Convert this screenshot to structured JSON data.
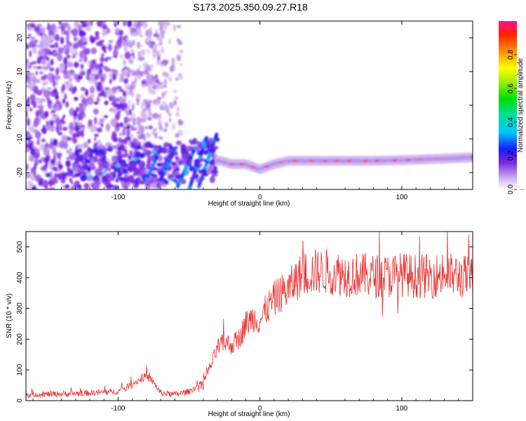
{
  "title": "S173.2025.350.09.27.R18",
  "colorbar": {
    "label": "Normalized spectral amplitude",
    "ticks": [
      "0.0",
      "0.2",
      "0.4",
      "0.6",
      "0.8"
    ],
    "tick_values": [
      0.0,
      0.2,
      0.4,
      0.6,
      0.8
    ],
    "range": [
      0,
      1
    ]
  },
  "chart_data": [
    {
      "type": "heatmap",
      "title": "",
      "xlabel": "Height of straight line (km)",
      "ylabel": "Frequency (Hz)",
      "xlim": [
        -165,
        150
      ],
      "ylim": [
        -25,
        25
      ],
      "xticks": [
        -100,
        0,
        100
      ],
      "xtick_labels": [
        "-100",
        "0",
        "100"
      ],
      "yticks": [
        -20,
        -10,
        0,
        10,
        20
      ],
      "ytick_labels": [
        "-20",
        "-10",
        "0",
        "10",
        "20"
      ],
      "ridge": {
        "description_points_x": [
          -28,
          -20,
          -10,
          0,
          10,
          20,
          40,
          60,
          80,
          100,
          120,
          150
        ],
        "frequency_hz": [
          -16.5,
          -17.5,
          -17.5,
          -19,
          -17.5,
          -16.5,
          -16.5,
          -16.5,
          -16.5,
          -16.3,
          -16,
          -15.5
        ],
        "amplitude": [
          0.6,
          0.7,
          0.65,
          0.5,
          0.7,
          0.8,
          0.9,
          0.9,
          0.85,
          0.75,
          0.7,
          0.6
        ]
      }
    },
    {
      "type": "line",
      "title": "",
      "xlabel": "Height of straight line (km)",
      "ylabel": "SNR (10 * v/v)",
      "xlim": [
        -165,
        150
      ],
      "ylim": [
        0,
        550
      ],
      "xticks": [
        -100,
        0,
        100
      ],
      "xtick_labels": [
        "-100",
        "0",
        "100"
      ],
      "yticks": [
        0,
        100,
        200,
        300,
        400,
        500
      ],
      "ytick_labels": [
        "0",
        "100",
        "200",
        "300",
        "400",
        "500"
      ],
      "series": [
        {
          "color": "#e8302e",
          "x": [
            -165,
            -140,
            -120,
            -100,
            -90,
            -80,
            -75,
            -70,
            -60,
            -50,
            -40,
            -35,
            -30,
            -25,
            -20,
            -15,
            -10,
            -5,
            0,
            5,
            10,
            15,
            20,
            25,
            30,
            40,
            50,
            60,
            70,
            80,
            90,
            100,
            110,
            120,
            130,
            140,
            150
          ],
          "y": [
            20,
            22,
            25,
            30,
            55,
            80,
            60,
            25,
            20,
            30,
            60,
            110,
            170,
            190,
            180,
            200,
            250,
            270,
            260,
            300,
            330,
            350,
            360,
            390,
            410,
            420,
            420,
            410,
            410,
            405,
            405,
            410,
            405,
            405,
            410,
            405,
            400
          ]
        }
      ]
    }
  ]
}
